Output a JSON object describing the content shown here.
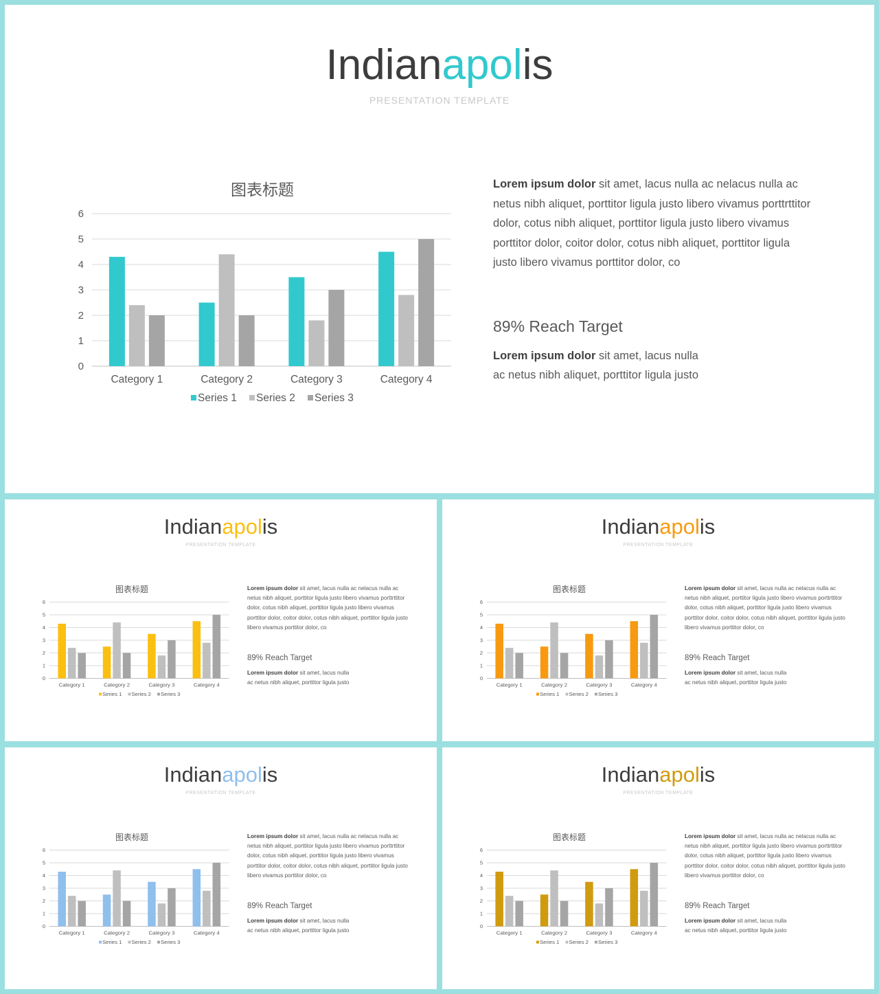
{
  "slides": [
    {
      "title_a": "Indian",
      "title_b": "apol",
      "title_c": "is",
      "subtitle": "PRESENTATION TEMPLATE",
      "accent": "#31c9cd",
      "chart_title": "图表标题",
      "para_bold": "Lorem ipsum dolor",
      "para_text": " sit amet, lacus nulla ac nelacus nulla ac netus nibh aliquet, porttitor ligula justo libero vivamus porttrttitor dolor, cotus nibh aliquet, porttitor ligula justo libero vivamus porttitor dolor, coitor dolor, cotus nibh aliquet, porttitor ligula justo libero vivamus porttitor dolor, co",
      "reach_title": "89% Reach Target",
      "reach_bold": "Lorem ipsum dolor",
      "reach_text": " sit amet, lacus nulla ac netus nibh aliquet, porttitor ligula justo"
    },
    {
      "title_a": "Indian",
      "title_b": "apol",
      "title_c": "is",
      "subtitle": "PRESENTATION TEMPLATE",
      "accent": "#fbbf10",
      "chart_title": "图表标题",
      "para_bold": "Lorem ipsum dolor",
      "para_text": " sit amet, lacus nulla ac nelacus nulla ac netus nibh aliquet, porttitor ligula justo libero vivamus porttrttitor dolor, cotus nibh aliquet, porttitor ligula justo libero vivamus porttitor dolor, coitor dolor, cotus nibh aliquet, porttitor ligula justo libero vivamus porttitor dolor, co",
      "reach_title": "89% Reach Target",
      "reach_bold": "Lorem ipsum dolor",
      "reach_text": " sit amet, lacus nulla ac netus nibh aliquet, porttitor ligula justo"
    },
    {
      "title_a": "Indian",
      "title_b": "apol",
      "title_c": "is",
      "subtitle": "PRESENTATION TEMPLATE",
      "accent": "#f79a10",
      "chart_title": "图表标题",
      "para_bold": "Lorem ipsum dolor",
      "para_text": " sit amet, lacus nulla ac nelacus nulla ac netus nibh aliquet, porttitor ligula justo libero vivamus porttrttitor dolor, cotus nibh aliquet, porttitor ligula justo libero vivamus porttitor dolor, coitor dolor, cotus nibh aliquet, porttitor ligula justo libero vivamus porttitor dolor, co",
      "reach_title": "89% Reach Target",
      "reach_bold": "Lorem ipsum dolor",
      "reach_text": " sit amet, lacus nulla ac netus nibh aliquet, porttitor ligula justo"
    },
    {
      "title_a": "Indian",
      "title_b": "apol",
      "title_c": "is",
      "subtitle": "PRESENTATION TEMPLATE",
      "accent": "#8fbfec",
      "chart_title": "图表标题",
      "para_bold": "Lorem ipsum dolor",
      "para_text": " sit amet, lacus nulla ac nelacus nulla ac netus nibh aliquet, porttitor ligula justo libero vivamus porttrttitor dolor, cotus nibh aliquet, porttitor ligula justo libero vivamus porttitor dolor, coitor dolor, cotus nibh aliquet, porttitor ligula justo libero vivamus porttitor dolor, co",
      "reach_title": "89% Reach Target",
      "reach_bold": "Lorem ipsum dolor",
      "reach_text": " sit amet, lacus nulla ac netus nibh aliquet, porttitor ligula justo"
    },
    {
      "title_a": "Indian",
      "title_b": "apol",
      "title_c": "is",
      "subtitle": "PRESENTATION TEMPLATE",
      "accent": "#d09b0f",
      "chart_title": "图表标题",
      "para_bold": "Lorem ipsum dolor",
      "para_text": " sit amet, lacus nulla ac nelacus nulla ac netus nibh aliquet, porttitor ligula justo libero vivamus porttrttitor dolor, cotus nibh aliquet, porttitor ligula justo libero vivamus porttitor dolor, coitor dolor, cotus nibh aliquet, porttitor ligula justo libero vivamus porttitor dolor, co",
      "reach_title": "89% Reach Target",
      "reach_bold": "Lorem ipsum dolor",
      "reach_text": " sit amet, lacus nulla ac netus nibh aliquet, porttitor ligula justo"
    }
  ],
  "chart_data": {
    "type": "bar",
    "title": "图表标题",
    "categories": [
      "Category 1",
      "Category 2",
      "Category 3",
      "Category 4"
    ],
    "series": [
      {
        "name": "Series 1",
        "values": [
          4.3,
          2.5,
          3.5,
          4.5
        ]
      },
      {
        "name": "Series 2",
        "values": [
          2.4,
          4.4,
          1.8,
          2.8
        ]
      },
      {
        "name": "Series 3",
        "values": [
          2,
          2,
          3,
          5
        ]
      }
    ],
    "ylim": [
      0,
      6
    ],
    "yticks": [
      "0",
      "1",
      "2",
      "3",
      "4",
      "5",
      "6"
    ],
    "grid": true,
    "legend_position": "bottom",
    "series_colors_fixed": [
      "accent",
      "#bfbfbf",
      "#a5a5a5"
    ]
  }
}
